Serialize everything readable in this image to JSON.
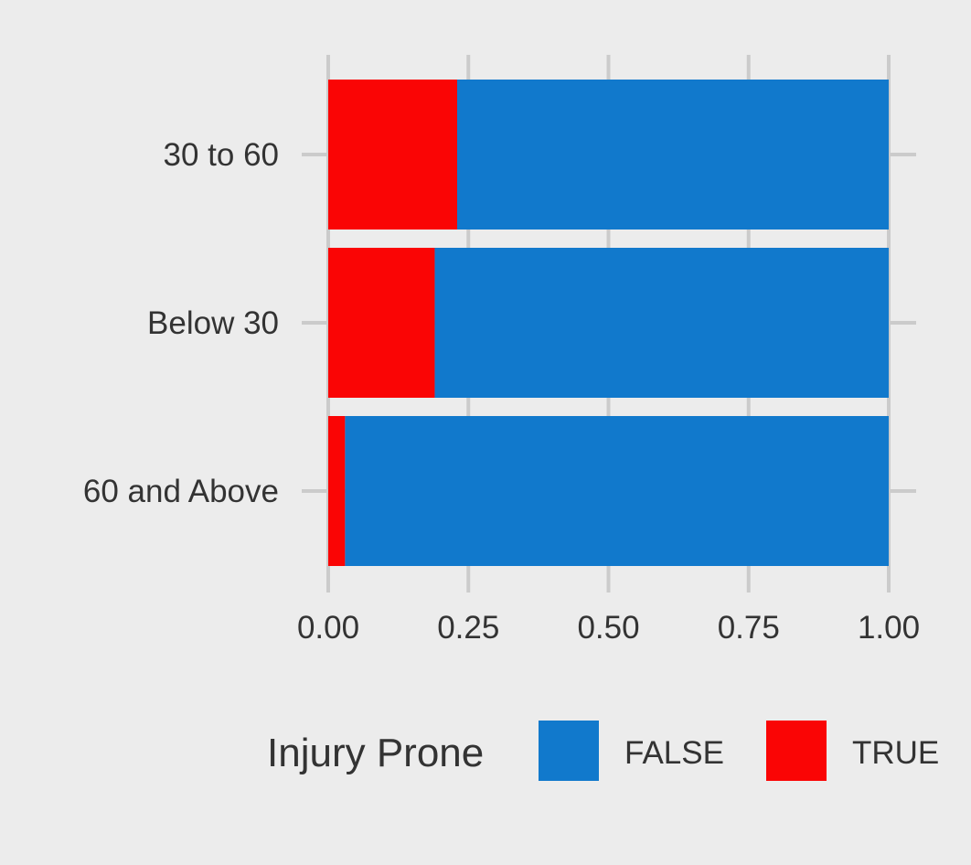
{
  "chart_data": {
    "type": "bar",
    "orientation": "horizontal",
    "stacked": true,
    "categories": [
      "30 to 60",
      "Below 30",
      "60 and Above"
    ],
    "series": [
      {
        "name": "FALSE",
        "color": "#1179cc",
        "values": [
          0.77,
          0.81,
          0.97
        ]
      },
      {
        "name": "TRUE",
        "color": "#fa0505",
        "values": [
          0.23,
          0.19,
          0.03
        ]
      }
    ],
    "xlim": [
      0,
      1
    ],
    "x_ticks": [
      0,
      0.25,
      0.5,
      0.75,
      1.0
    ],
    "x_tick_labels": [
      "0.00",
      "0.25",
      "0.50",
      "0.75",
      "1.00"
    ],
    "grid": true,
    "legend": {
      "title": "Injury Prone",
      "position": "bottom"
    },
    "colors": {
      "background": "#ececec",
      "grid": "#cbcbcb",
      "text": "#333333"
    }
  }
}
